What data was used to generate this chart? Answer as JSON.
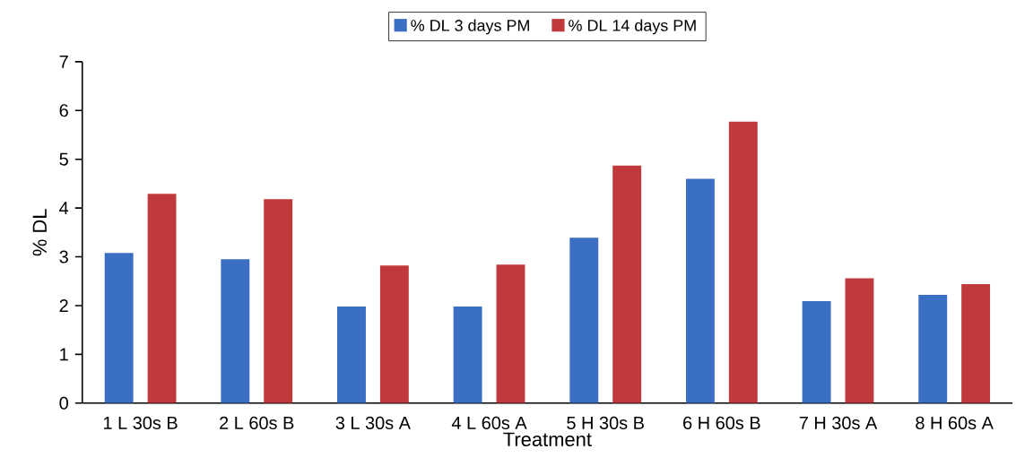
{
  "chart_data": {
    "type": "bar",
    "xlabel": "Treatment",
    "ylabel": "% DL",
    "categories": [
      "1 L 30s B",
      "2 L 60s B",
      "3 L 30s A",
      "4 L 60s A",
      "5 H 30s B",
      "6 H 60s B",
      "7 H 30s A",
      "8 H 60s A"
    ],
    "series": [
      {
        "name": "% DL 3 days PM",
        "color": "#3a6fc4",
        "values": [
          3.08,
          2.95,
          1.98,
          1.98,
          3.39,
          4.6,
          2.09,
          2.22
        ]
      },
      {
        "name": "% DL 14 days PM",
        "color": "#c0393b",
        "values": [
          4.29,
          4.18,
          2.82,
          2.84,
          4.87,
          5.77,
          2.56,
          2.44
        ]
      }
    ],
    "ylim": [
      0,
      7
    ],
    "yticks": [
      0,
      1,
      2,
      3,
      4,
      5,
      6,
      7
    ],
    "grid": false,
    "legend": "top"
  }
}
